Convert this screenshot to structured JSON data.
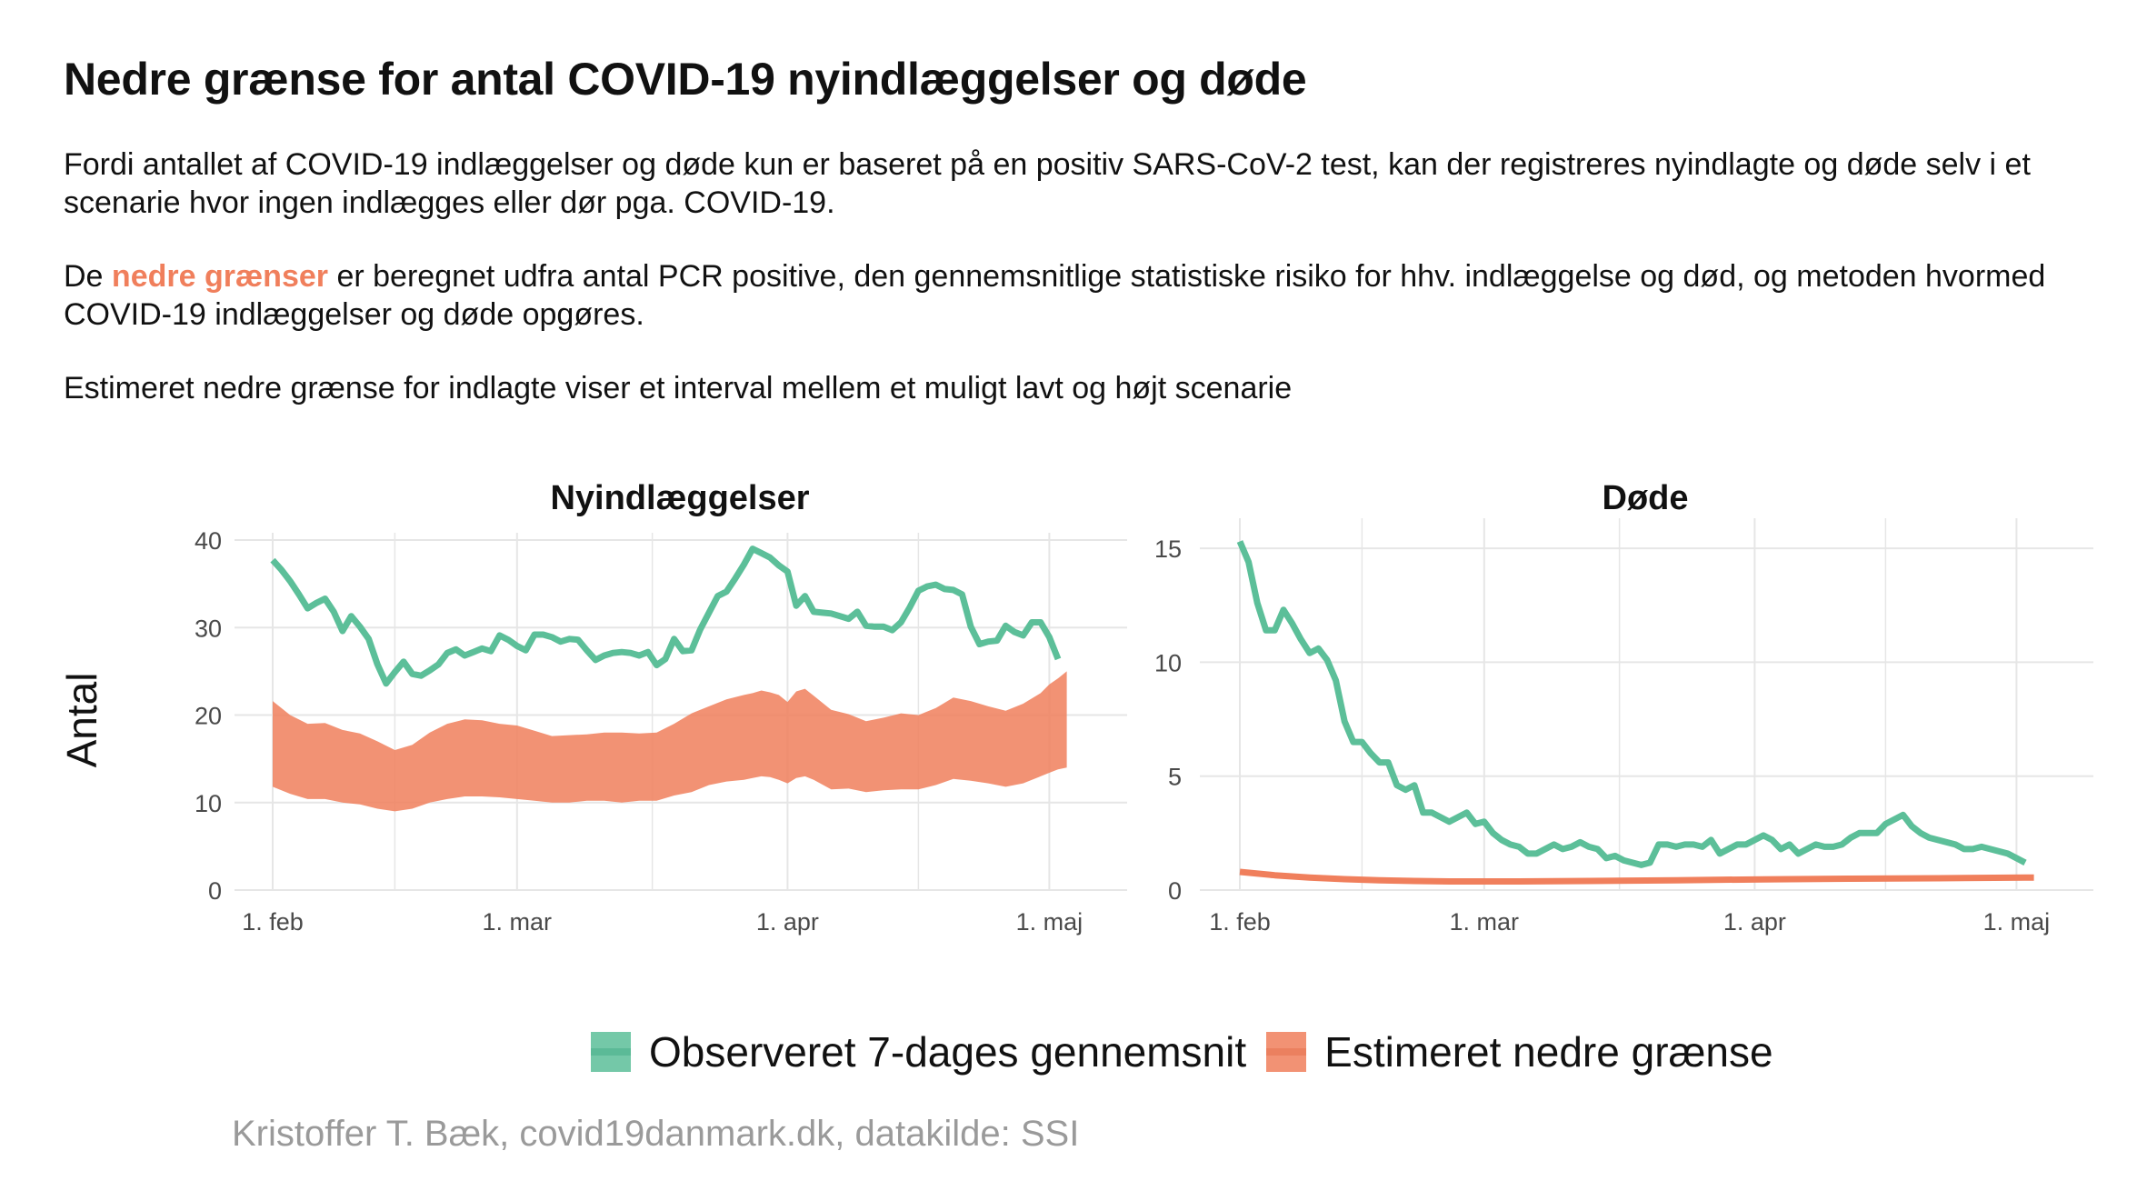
{
  "title": "Nedre grænse for antal COVID-19 nyindlæggelser og døde",
  "paragraph1": "Fordi antallet af COVID-19 indlæggelser og døde kun er baseret på en positiv SARS-CoV-2 test, kan der registreres nyindlagte og døde selv i et scenarie hvor ingen indlægges eller dør pga. COVID-19.",
  "paragraph2": {
    "before": "De ",
    "highlight": "nedre grænser",
    "after": " er beregnet udfra antal PCR positive, den gennemsnitlige statistiske risiko for hhv. indlæggelse og død, og metoden hvormed COVID-19 indlæggelser og døde opgøres."
  },
  "paragraph3": "Estimeret nedre grænse for indlagte viser et interval mellem et muligt lavt og højt scenarie",
  "colors": {
    "observed": "#5cbf99",
    "estimate": "#f07f5c",
    "text": "#111111",
    "grid": "#e6e6e6",
    "caption": "#9a9a9a"
  },
  "legend": {
    "observed": "Observeret 7-dages gennemsnit",
    "estimate": "Estimeret nedre grænse"
  },
  "caption": "Kristoffer T. Bæk, covid19danmark.dk, datakilde: SSI",
  "chart_data": {
    "type": "line",
    "ylabel": "Antal",
    "x_tick_labels": [
      "1. feb",
      "1. mar",
      "1. apr",
      "1. maj"
    ],
    "x_tick_days": [
      0,
      28,
      59,
      89
    ],
    "panels": [
      {
        "title": "Nyindlæggelser",
        "ylim": [
          0,
          40
        ],
        "y_ticks": [
          0,
          10,
          20,
          30,
          40
        ],
        "observed": [
          [
            0,
            37.7
          ],
          [
            1,
            36.6
          ],
          [
            2,
            35.3
          ],
          [
            3,
            33.8
          ],
          [
            4,
            32.2
          ],
          [
            5,
            32.8
          ],
          [
            6,
            33.3
          ],
          [
            7,
            31.8
          ],
          [
            8,
            29.6
          ],
          [
            9,
            31.3
          ],
          [
            10,
            30.1
          ],
          [
            11,
            28.7
          ],
          [
            12,
            25.8
          ],
          [
            13,
            23.6
          ],
          [
            14,
            24.9
          ],
          [
            15,
            26.1
          ],
          [
            16,
            24.7
          ],
          [
            17,
            24.5
          ],
          [
            18,
            25.1
          ],
          [
            19,
            25.8
          ],
          [
            20,
            27.1
          ],
          [
            21,
            27.5
          ],
          [
            22,
            26.8
          ],
          [
            23,
            27.2
          ],
          [
            24,
            27.6
          ],
          [
            25,
            27.3
          ],
          [
            26,
            29.1
          ],
          [
            27,
            28.6
          ],
          [
            28,
            27.9
          ],
          [
            29,
            27.4
          ],
          [
            30,
            29.2
          ],
          [
            31,
            29.2
          ],
          [
            32,
            28.9
          ],
          [
            33,
            28.4
          ],
          [
            34,
            28.7
          ],
          [
            35,
            28.6
          ],
          [
            36,
            27.4
          ],
          [
            37,
            26.3
          ],
          [
            38,
            26.8
          ],
          [
            39,
            27.1
          ],
          [
            40,
            27.2
          ],
          [
            41,
            27.1
          ],
          [
            42,
            26.8
          ],
          [
            43,
            27.2
          ],
          [
            44,
            25.7
          ],
          [
            45,
            26.4
          ],
          [
            46,
            28.7
          ],
          [
            47,
            27.3
          ],
          [
            48,
            27.4
          ],
          [
            49,
            29.8
          ],
          [
            50,
            31.7
          ],
          [
            51,
            33.6
          ],
          [
            52,
            34.1
          ],
          [
            53,
            35.6
          ],
          [
            54,
            37.2
          ],
          [
            55,
            39.0
          ],
          [
            56,
            38.5
          ],
          [
            57,
            38.0
          ],
          [
            58,
            37.1
          ],
          [
            59,
            36.4
          ],
          [
            60,
            32.5
          ],
          [
            61,
            33.6
          ],
          [
            62,
            31.8
          ],
          [
            63,
            31.7
          ],
          [
            64,
            31.6
          ],
          [
            65,
            31.3
          ],
          [
            66,
            31.0
          ],
          [
            67,
            31.8
          ],
          [
            68,
            30.2
          ],
          [
            69,
            30.1
          ],
          [
            70,
            30.1
          ],
          [
            71,
            29.7
          ],
          [
            72,
            30.6
          ],
          [
            73,
            32.3
          ],
          [
            74,
            34.2
          ],
          [
            75,
            34.7
          ],
          [
            76,
            34.9
          ],
          [
            77,
            34.4
          ],
          [
            78,
            34.3
          ],
          [
            79,
            33.8
          ],
          [
            80,
            30.1
          ],
          [
            81,
            28.1
          ],
          [
            82,
            28.4
          ],
          [
            83,
            28.5
          ],
          [
            84,
            30.2
          ],
          [
            85,
            29.5
          ],
          [
            86,
            29.1
          ],
          [
            87,
            30.6
          ],
          [
            88,
            30.6
          ],
          [
            89,
            28.9
          ],
          [
            90,
            26.4
          ]
        ],
        "estimate_band": [
          [
            0,
            11.8,
            21.6
          ],
          [
            2,
            11.0,
            20.0
          ],
          [
            4,
            10.4,
            19.0
          ],
          [
            6,
            10.4,
            19.1
          ],
          [
            8,
            10.0,
            18.3
          ],
          [
            10,
            9.8,
            17.9
          ],
          [
            12,
            9.3,
            17.0
          ],
          [
            14,
            9.0,
            16.0
          ],
          [
            16,
            9.3,
            16.6
          ],
          [
            18,
            10.0,
            18.0
          ],
          [
            20,
            10.4,
            19.0
          ],
          [
            22,
            10.7,
            19.5
          ],
          [
            24,
            10.7,
            19.4
          ],
          [
            26,
            10.6,
            19.0
          ],
          [
            28,
            10.4,
            18.8
          ],
          [
            30,
            10.2,
            18.2
          ],
          [
            32,
            10.0,
            17.6
          ],
          [
            34,
            10.0,
            17.7
          ],
          [
            36,
            10.2,
            17.8
          ],
          [
            38,
            10.2,
            18.0
          ],
          [
            40,
            10.0,
            18.0
          ],
          [
            42,
            10.2,
            17.9
          ],
          [
            44,
            10.2,
            18.0
          ],
          [
            46,
            10.8,
            19.0
          ],
          [
            48,
            11.2,
            20.2
          ],
          [
            50,
            12.0,
            21.0
          ],
          [
            52,
            12.4,
            21.8
          ],
          [
            54,
            12.6,
            22.3
          ],
          [
            55,
            12.8,
            22.5
          ],
          [
            56,
            13.0,
            22.8
          ],
          [
            57,
            12.9,
            22.6
          ],
          [
            58,
            12.6,
            22.3
          ],
          [
            59,
            12.2,
            21.5
          ],
          [
            60,
            12.8,
            22.7
          ],
          [
            61,
            13.0,
            23.0
          ],
          [
            62,
            12.6,
            22.2
          ],
          [
            64,
            11.5,
            20.6
          ],
          [
            66,
            11.6,
            20.1
          ],
          [
            68,
            11.2,
            19.3
          ],
          [
            70,
            11.4,
            19.7
          ],
          [
            72,
            11.5,
            20.2
          ],
          [
            74,
            11.5,
            20.0
          ],
          [
            76,
            12.0,
            20.8
          ],
          [
            78,
            12.7,
            22.0
          ],
          [
            80,
            12.5,
            21.6
          ],
          [
            82,
            12.2,
            21.0
          ],
          [
            84,
            11.8,
            20.5
          ],
          [
            86,
            12.2,
            21.3
          ],
          [
            88,
            13.0,
            22.5
          ],
          [
            89,
            13.4,
            23.5
          ],
          [
            90,
            13.8,
            24.2
          ],
          [
            91,
            14.0,
            25.0
          ]
        ]
      },
      {
        "title": "Døde",
        "ylim": [
          0,
          16
        ],
        "y_ticks": [
          0,
          5,
          10,
          15
        ],
        "observed": [
          [
            0,
            15.3
          ],
          [
            1,
            14.4
          ],
          [
            2,
            12.6
          ],
          [
            3,
            11.4
          ],
          [
            4,
            11.4
          ],
          [
            5,
            12.3
          ],
          [
            6,
            11.7
          ],
          [
            7,
            11.0
          ],
          [
            8,
            10.4
          ],
          [
            9,
            10.6
          ],
          [
            10,
            10.1
          ],
          [
            11,
            9.2
          ],
          [
            12,
            7.4
          ],
          [
            13,
            6.5
          ],
          [
            14,
            6.5
          ],
          [
            15,
            6.0
          ],
          [
            16,
            5.6
          ],
          [
            17,
            5.6
          ],
          [
            18,
            4.6
          ],
          [
            19,
            4.4
          ],
          [
            20,
            4.6
          ],
          [
            21,
            3.4
          ],
          [
            22,
            3.4
          ],
          [
            23,
            3.2
          ],
          [
            24,
            3.0
          ],
          [
            25,
            3.2
          ],
          [
            26,
            3.4
          ],
          [
            27,
            2.9
          ],
          [
            28,
            3.0
          ],
          [
            29,
            2.5
          ],
          [
            30,
            2.2
          ],
          [
            31,
            2.0
          ],
          [
            32,
            1.9
          ],
          [
            33,
            1.6
          ],
          [
            34,
            1.6
          ],
          [
            35,
            1.8
          ],
          [
            36,
            2.0
          ],
          [
            37,
            1.8
          ],
          [
            38,
            1.9
          ],
          [
            39,
            2.1
          ],
          [
            40,
            1.9
          ],
          [
            41,
            1.8
          ],
          [
            42,
            1.4
          ],
          [
            43,
            1.5
          ],
          [
            44,
            1.3
          ],
          [
            45,
            1.2
          ],
          [
            46,
            1.1
          ],
          [
            47,
            1.2
          ],
          [
            48,
            2.0
          ],
          [
            49,
            2.0
          ],
          [
            50,
            1.9
          ],
          [
            51,
            2.0
          ],
          [
            52,
            2.0
          ],
          [
            53,
            1.9
          ],
          [
            54,
            2.2
          ],
          [
            55,
            1.6
          ],
          [
            56,
            1.8
          ],
          [
            57,
            2.0
          ],
          [
            58,
            2.0
          ],
          [
            59,
            2.2
          ],
          [
            60,
            2.4
          ],
          [
            61,
            2.2
          ],
          [
            62,
            1.8
          ],
          [
            63,
            2.0
          ],
          [
            64,
            1.6
          ],
          [
            65,
            1.8
          ],
          [
            66,
            2.0
          ],
          [
            67,
            1.9
          ],
          [
            68,
            1.9
          ],
          [
            69,
            2.0
          ],
          [
            70,
            2.3
          ],
          [
            71,
            2.5
          ],
          [
            72,
            2.5
          ],
          [
            73,
            2.5
          ],
          [
            74,
            2.9
          ],
          [
            75,
            3.1
          ],
          [
            76,
            3.3
          ],
          [
            77,
            2.8
          ],
          [
            78,
            2.5
          ],
          [
            79,
            2.3
          ],
          [
            80,
            2.2
          ],
          [
            81,
            2.1
          ],
          [
            82,
            2.0
          ],
          [
            83,
            1.8
          ],
          [
            84,
            1.8
          ],
          [
            85,
            1.9
          ],
          [
            86,
            1.8
          ],
          [
            87,
            1.7
          ],
          [
            88,
            1.6
          ],
          [
            89,
            1.4
          ],
          [
            90,
            1.2
          ]
        ],
        "estimate": [
          [
            0,
            0.8
          ],
          [
            4,
            0.65
          ],
          [
            8,
            0.55
          ],
          [
            12,
            0.48
          ],
          [
            16,
            0.43
          ],
          [
            20,
            0.4
          ],
          [
            24,
            0.38
          ],
          [
            28,
            0.38
          ],
          [
            32,
            0.38
          ],
          [
            40,
            0.4
          ],
          [
            50,
            0.43
          ],
          [
            60,
            0.47
          ],
          [
            70,
            0.5
          ],
          [
            80,
            0.52
          ],
          [
            90,
            0.55
          ],
          [
            91,
            0.55
          ]
        ]
      }
    ]
  }
}
